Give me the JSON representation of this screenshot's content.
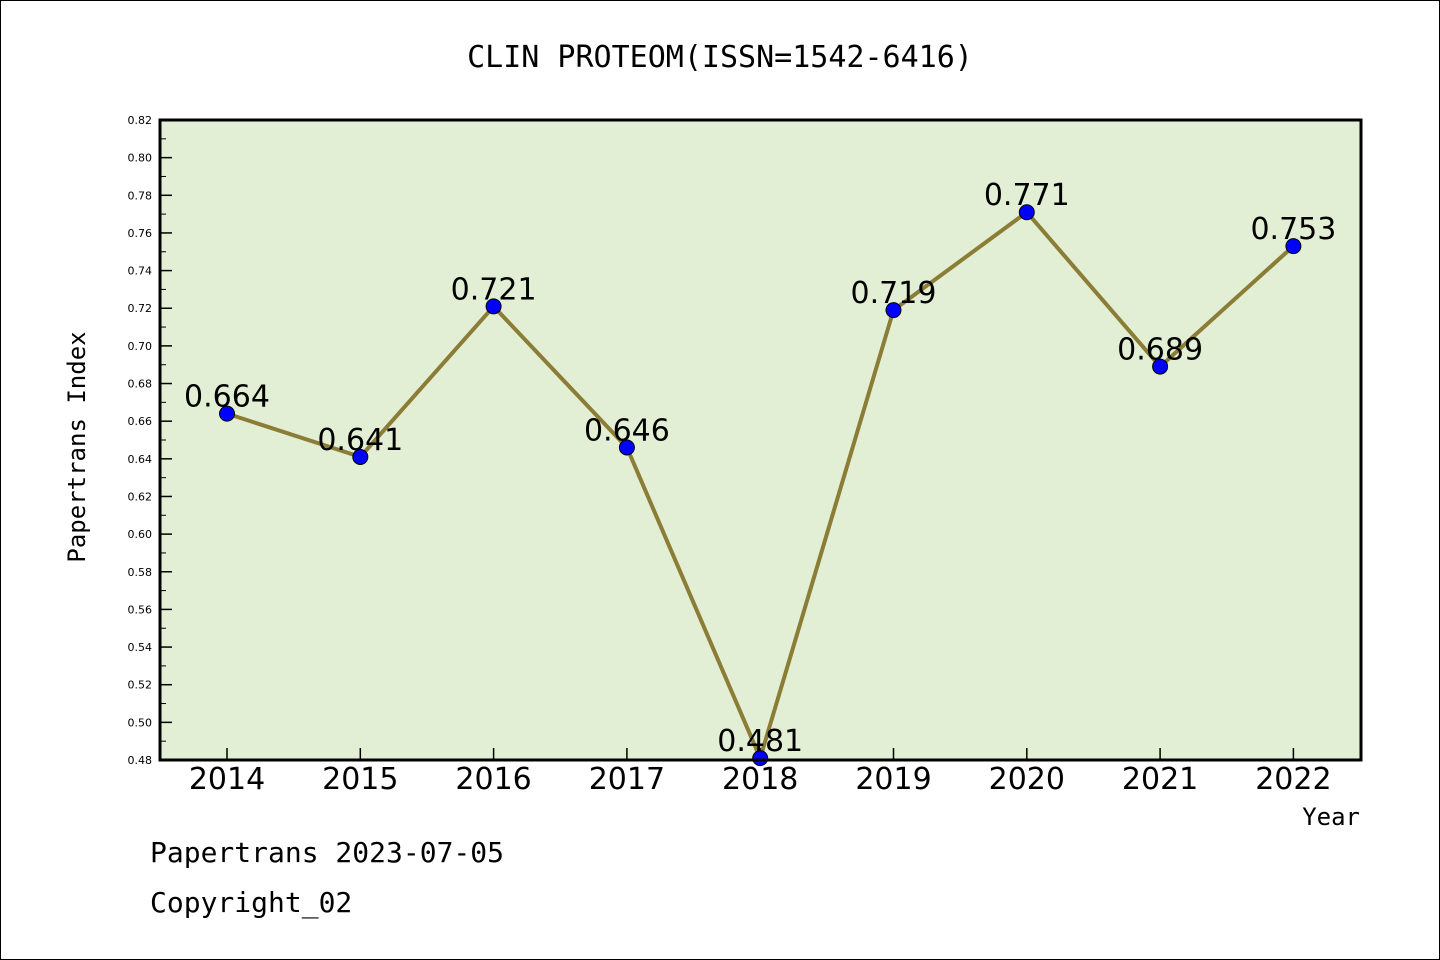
{
  "chart_data": {
    "type": "line",
    "title": "CLIN PROTEOM(ISSN=1542-6416)",
    "xlabel": "Year",
    "ylabel": "Papertrans Index",
    "categories": [
      "2014",
      "2015",
      "2016",
      "2017",
      "2018",
      "2019",
      "2020",
      "2021",
      "2022"
    ],
    "series": [
      {
        "values": [
          0.664,
          0.641,
          0.721,
          0.646,
          0.481,
          0.719,
          0.771,
          0.689,
          0.753
        ]
      }
    ],
    "data_labels": [
      "0.664",
      "0.641",
      "0.721",
      "0.646",
      "0.481",
      "0.719",
      "0.771",
      "0.689",
      "0.753"
    ],
    "ylim": [
      0.48,
      0.82
    ],
    "yticks": [
      "0.48",
      "0.50",
      "0.52",
      "0.54",
      "0.56",
      "0.58",
      "0.60",
      "0.62",
      "0.64",
      "0.66",
      "0.68",
      "0.70",
      "0.72",
      "0.74",
      "0.76",
      "0.78",
      "0.80",
      "0.82"
    ],
    "grid": false,
    "colors": {
      "plot_background": "#e2efd5",
      "line": "#8b7d35",
      "marker": "#0000ff"
    }
  },
  "footer": {
    "line1": "Papertrans 2023-07-05",
    "line2": "Copyright_02"
  }
}
